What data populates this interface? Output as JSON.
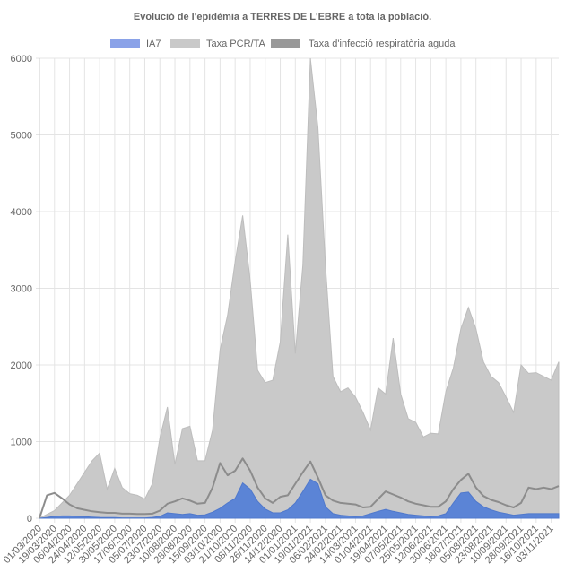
{
  "chart_data": {
    "type": "area",
    "title": "Evolució de l'epidèmia a TERRES DE L'EBRE a tota la població.",
    "xlabel": "",
    "ylabel": "",
    "ylim": [
      0,
      6000
    ],
    "yticks": [
      "0",
      "1000",
      "2000",
      "3000",
      "4000",
      "5000",
      "6000"
    ],
    "grid": true,
    "legend_position": "top",
    "x": [
      "01/03/2020",
      "10/03/2020",
      "19/03/2020",
      "28/03/2020",
      "06/04/2020",
      "15/04/2020",
      "24/04/2020",
      "03/05/2020",
      "12/05/2020",
      "21/05/2020",
      "30/05/2020",
      "08/06/2020",
      "17/06/2020",
      "26/06/2020",
      "05/07/2020",
      "14/07/2020",
      "23/07/2020",
      "01/08/2020",
      "10/08/2020",
      "19/08/2020",
      "28/08/2020",
      "06/09/2020",
      "15/09/2020",
      "24/09/2020",
      "03/10/2020",
      "12/10/2020",
      "21/10/2020",
      "30/10/2020",
      "08/11/2020",
      "17/11/2020",
      "26/11/2020",
      "05/12/2020",
      "14/12/2020",
      "23/12/2020",
      "01/01/2021",
      "10/01/2021",
      "19/01/2021",
      "28/01/2021",
      "06/02/2021",
      "15/02/2021",
      "24/02/2021",
      "05/03/2021",
      "14/03/2021",
      "23/03/2021",
      "01/04/2021",
      "10/04/2021",
      "19/04/2021",
      "28/04/2021",
      "07/05/2021",
      "16/05/2021",
      "25/05/2021",
      "03/06/2021",
      "12/06/2021",
      "21/06/2021",
      "30/06/2021",
      "09/07/2021",
      "18/07/2021",
      "27/07/2021",
      "05/08/2021",
      "14/08/2021",
      "23/08/2021",
      "01/09/2021",
      "10/09/2021",
      "19/09/2021",
      "28/09/2021",
      "07/10/2021",
      "16/10/2021",
      "25/10/2021",
      "03/11/2021",
      "12/11/2021"
    ],
    "xticks": [
      "01/03/2020",
      "19/03/2020",
      "06/04/2020",
      "24/04/2020",
      "12/05/2020",
      "30/05/2020",
      "17/06/2020",
      "05/07/2020",
      "23/07/2020",
      "10/08/2020",
      "28/08/2020",
      "15/09/2020",
      "03/10/2020",
      "21/10/2020",
      "08/11/2020",
      "26/11/2020",
      "14/12/2020",
      "01/01/2021",
      "19/01/2021",
      "06/02/2021",
      "24/02/2021",
      "14/03/2021",
      "01/04/2021",
      "19/04/2021",
      "07/05/2021",
      "25/05/2021",
      "12/06/2021",
      "30/06/2021",
      "18/07/2021",
      "05/08/2021",
      "23/08/2021",
      "10/09/2021",
      "28/09/2021",
      "16/10/2021",
      "03/11/2021"
    ],
    "series": [
      {
        "name": "IA7",
        "color": "#5b84d6",
        "legend_color": "#8aa2e8",
        "values": [
          0,
          10,
          25,
          30,
          30,
          25,
          20,
          15,
          10,
          8,
          8,
          5,
          5,
          5,
          5,
          10,
          25,
          70,
          60,
          50,
          60,
          40,
          45,
          80,
          130,
          200,
          260,
          460,
          380,
          220,
          120,
          70,
          70,
          110,
          200,
          350,
          510,
          450,
          150,
          60,
          40,
          30,
          20,
          30,
          60,
          90,
          115,
          90,
          70,
          50,
          40,
          30,
          20,
          30,
          60,
          200,
          330,
          340,
          220,
          150,
          110,
          80,
          60,
          40,
          50,
          60,
          60,
          60,
          60,
          60
        ]
      },
      {
        "name": "Taxa PCR/TA",
        "color": "#c9c9c9",
        "legend_color": "#c9c9c9",
        "values": [
          0,
          50,
          100,
          200,
          300,
          450,
          600,
          750,
          850,
          380,
          650,
          400,
          320,
          300,
          250,
          450,
          1050,
          1450,
          700,
          1170,
          1200,
          750,
          750,
          1150,
          2200,
          2650,
          3350,
          3950,
          3100,
          1930,
          1770,
          1800,
          2300,
          3700,
          2150,
          3300,
          6000,
          5100,
          3300,
          1850,
          1650,
          1700,
          1580,
          1380,
          1150,
          1700,
          1620,
          2350,
          1620,
          1300,
          1250,
          1060,
          1110,
          1100,
          1650,
          1960,
          2470,
          2750,
          2470,
          2040,
          1850,
          1770,
          1580,
          1380,
          2000,
          1890,
          1900,
          1850,
          1800,
          2040
        ]
      },
      {
        "name": "Taxa d'infecció respiratòria aguda",
        "color": "#8c8c8c",
        "legend_color": "#999999",
        "values": [
          0,
          300,
          330,
          260,
          180,
          130,
          110,
          90,
          80,
          70,
          70,
          60,
          60,
          55,
          55,
          60,
          100,
          190,
          220,
          260,
          230,
          190,
          200,
          400,
          720,
          560,
          620,
          780,
          620,
          400,
          260,
          200,
          280,
          300,
          450,
          600,
          740,
          530,
          300,
          230,
          200,
          190,
          180,
          140,
          150,
          250,
          350,
          310,
          270,
          220,
          190,
          170,
          150,
          150,
          220,
          380,
          500,
          580,
          400,
          290,
          240,
          210,
          170,
          140,
          200,
          400,
          380,
          400,
          380,
          420
        ]
      }
    ]
  }
}
